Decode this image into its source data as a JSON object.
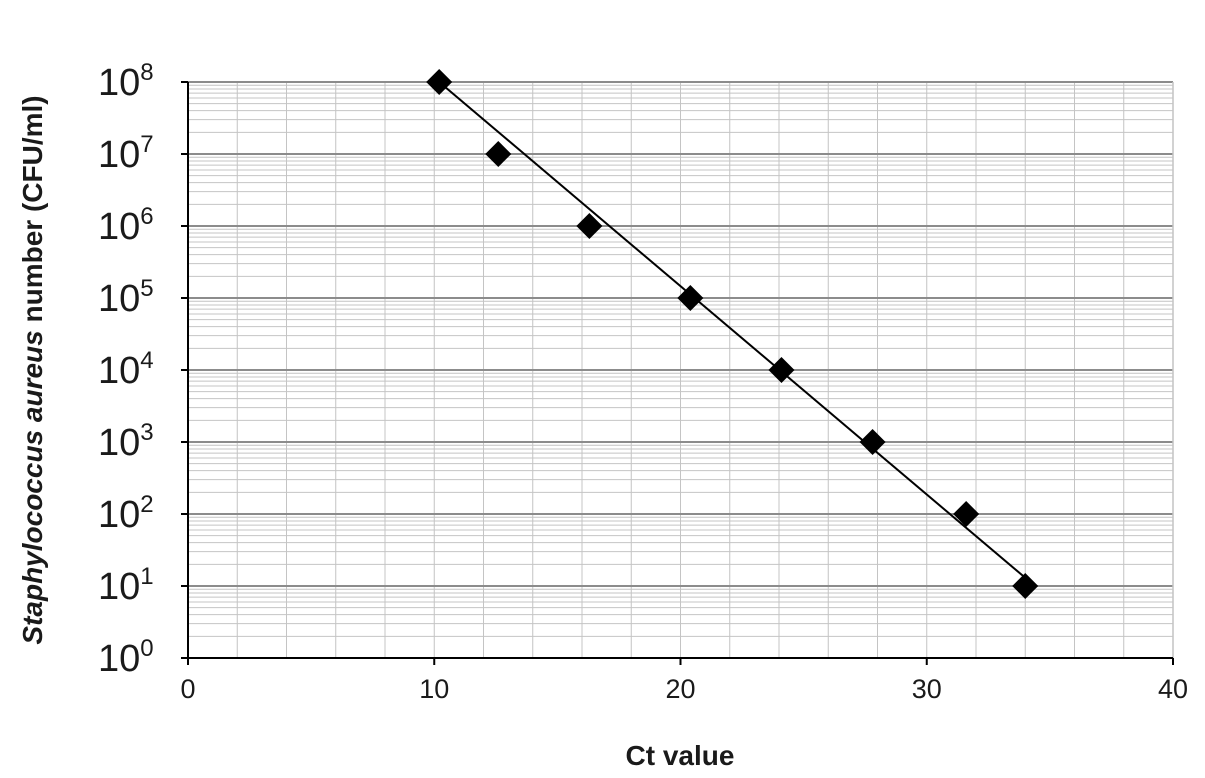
{
  "chart_data": {
    "type": "scatter",
    "xlabel": "Ct value",
    "ylabel_italic": "Staphylococcus aureus",
    "ylabel_rest": " number (CFU/ml)",
    "x_ticks": [
      "0",
      "10",
      "20",
      "30",
      "40"
    ],
    "xlim": [
      0,
      40
    ],
    "y_scale": "log",
    "y_ticks": [
      {
        "base": "10",
        "exp": "0"
      },
      {
        "base": "10",
        "exp": "1"
      },
      {
        "base": "10",
        "exp": "2"
      },
      {
        "base": "10",
        "exp": "3"
      },
      {
        "base": "10",
        "exp": "4"
      },
      {
        "base": "10",
        "exp": "5"
      },
      {
        "base": "10",
        "exp": "6"
      },
      {
        "base": "10",
        "exp": "7"
      },
      {
        "base": "10",
        "exp": "8"
      }
    ],
    "ylim": [
      1,
      100000000
    ],
    "grid": true,
    "marker": "diamond",
    "series": [
      {
        "x": [
          10.2,
          12.6,
          16.3,
          20.4,
          24.1,
          27.8,
          31.6,
          34.0
        ],
        "y": [
          100000000,
          10000000,
          1000000,
          100000,
          10000,
          1000,
          100,
          10
        ]
      }
    ],
    "trendline": {
      "x": [
        10.2,
        34.0
      ],
      "y": [
        100000000,
        13
      ]
    },
    "colors": {
      "marker": "#000000",
      "line": "#000000",
      "grid_major": "#8c8c8c",
      "grid_minor": "#c4c4c4",
      "axis": "#000000"
    }
  }
}
